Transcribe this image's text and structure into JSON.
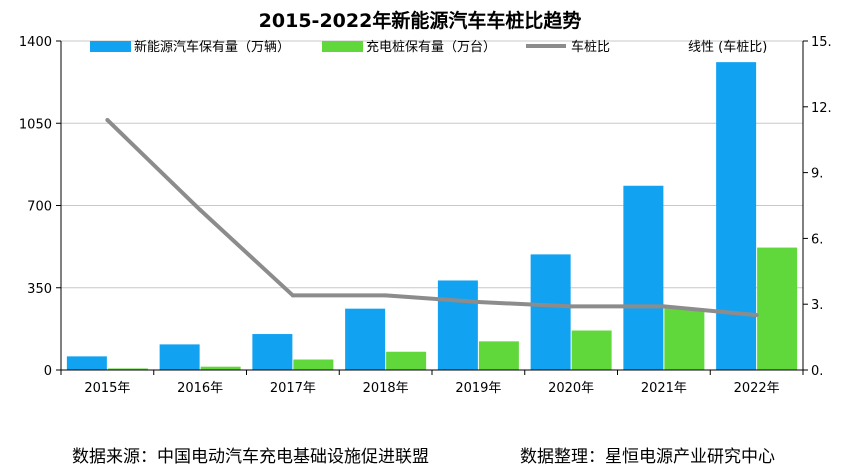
{
  "chart_data": {
    "type": "bar",
    "title": "2015-2022年新能源汽车车桩比趋势",
    "categories": [
      "2015年",
      "2016年",
      "2017年",
      "2018年",
      "2019年",
      "2020年",
      "2021年",
      "2022年"
    ],
    "ylim": [
      0,
      1400
    ],
    "y_ticks": [
      "0",
      "350",
      "700",
      "1050",
      "1400"
    ],
    "y2lim": [
      0,
      15
    ],
    "y2_ticks": [
      "0.",
      "3.",
      "6.",
      "9.",
      "12.",
      "15."
    ],
    "grid": true,
    "legend_position": "top",
    "series": [
      {
        "name": "新能源汽车保有量（万辆）",
        "type": "bar",
        "axis": "left",
        "color": "#12A2F2",
        "values": [
          58,
          109,
          153,
          261,
          381,
          492,
          784,
          1310
        ]
      },
      {
        "name": "充电桩保有量（万台）",
        "type": "bar",
        "axis": "left",
        "color": "#60D83C",
        "values": [
          6.6,
          14.1,
          44.6,
          77.7,
          121.9,
          168.1,
          261.7,
          521
        ]
      },
      {
        "name": "车桩比",
        "type": "line",
        "axis": "right",
        "color": "#8C8C8C",
        "values": [
          11.4,
          7.3,
          3.4,
          3.4,
          3.1,
          2.9,
          2.9,
          2.5
        ]
      }
    ],
    "trendline_legend": "线性 (车桩比)"
  },
  "footer": {
    "source": "数据来源：中国电动汽车充电基础设施促进联盟",
    "organizer": "数据整理：星恒电源产业研究中心"
  }
}
